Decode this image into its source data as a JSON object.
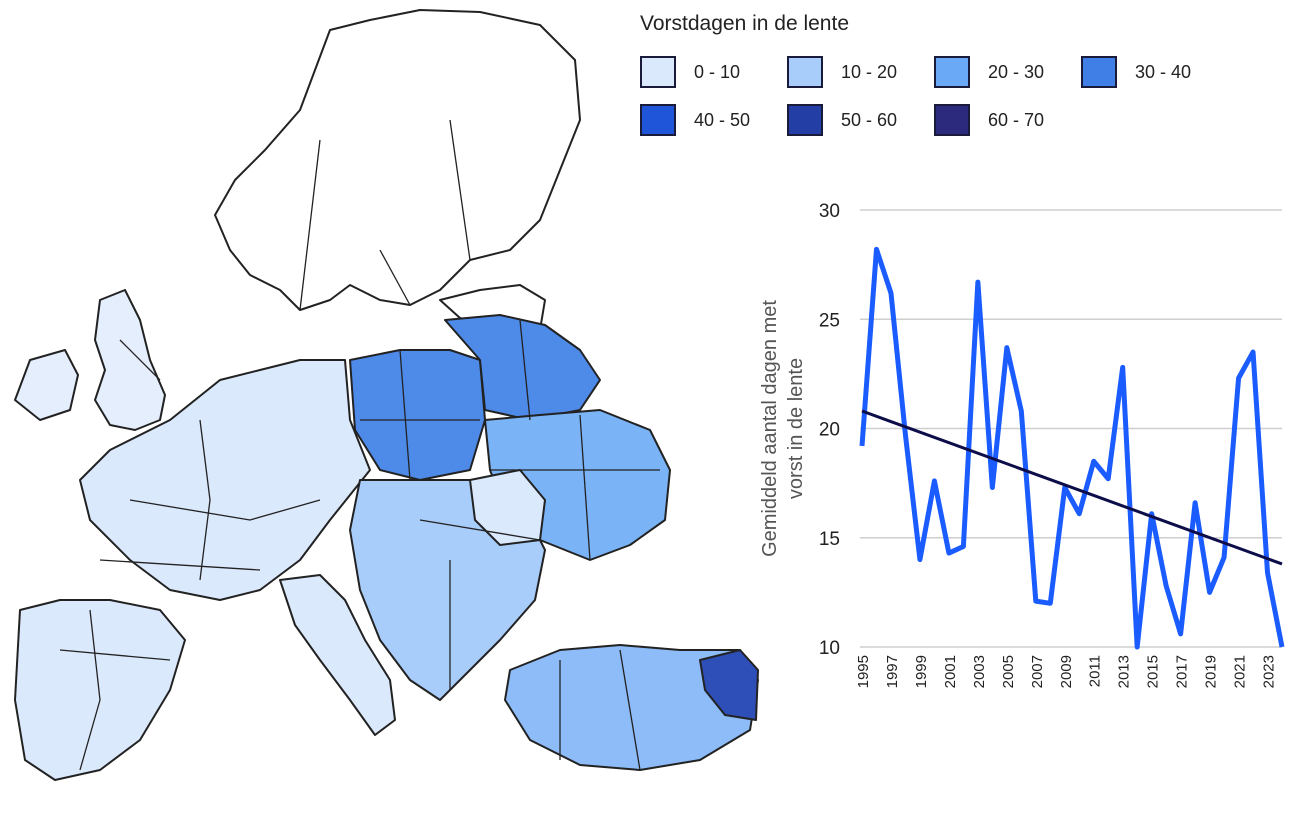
{
  "legend": {
    "title": "Vorstdagen in de lente",
    "items": [
      {
        "label": "0 - 10",
        "color": "#dbe9fd"
      },
      {
        "label": "10 - 20",
        "color": "#a9cdfb"
      },
      {
        "label": "20 - 30",
        "color": "#6aa9f5"
      },
      {
        "label": "30 - 40",
        "color": "#3f7fe6"
      },
      {
        "label": "40 - 50",
        "color": "#1f55d8"
      },
      {
        "label": "50 - 60",
        "color": "#233fa6"
      },
      {
        "label": "60 - 70",
        "color": "#2c2a7c"
      }
    ]
  },
  "chart_data": {
    "type": "line",
    "ylabel": "Gemiddeld aantal dagen met vorst in de lente",
    "ylim": [
      10,
      30
    ],
    "yticks": [
      10,
      15,
      20,
      25,
      30
    ],
    "xlim": [
      1995,
      2024
    ],
    "xticks": [
      1995,
      1997,
      1999,
      2001,
      2003,
      2005,
      2007,
      2009,
      2011,
      2013,
      2015,
      2017,
      2019,
      2021,
      2023
    ],
    "grid": "horizontal",
    "series": [
      {
        "color": "#1a5cff",
        "x": [
          1995,
          1996,
          1997,
          1998,
          1999,
          2000,
          2001,
          2002,
          2003,
          2004,
          2005,
          2006,
          2007,
          2008,
          2009,
          2010,
          2011,
          2012,
          2013,
          2014,
          2015,
          2016,
          2017,
          2018,
          2019,
          2020,
          2021,
          2022,
          2023,
          2024
        ],
        "values": [
          19.2,
          28.2,
          26.2,
          19.7,
          14.0,
          17.6,
          14.3,
          14.6,
          26.7,
          17.3,
          23.7,
          20.8,
          12.1,
          12.0,
          17.3,
          16.1,
          18.5,
          17.7,
          22.8,
          9.7,
          16.1,
          12.8,
          10.6,
          16.6,
          12.5,
          14.1,
          22.3,
          23.5,
          13.4,
          9.7
        ]
      },
      {
        "name": "trend",
        "color": "#0d0d4a",
        "x": [
          1995,
          2024
        ],
        "values": [
          20.8,
          13.8
        ]
      }
    ]
  }
}
